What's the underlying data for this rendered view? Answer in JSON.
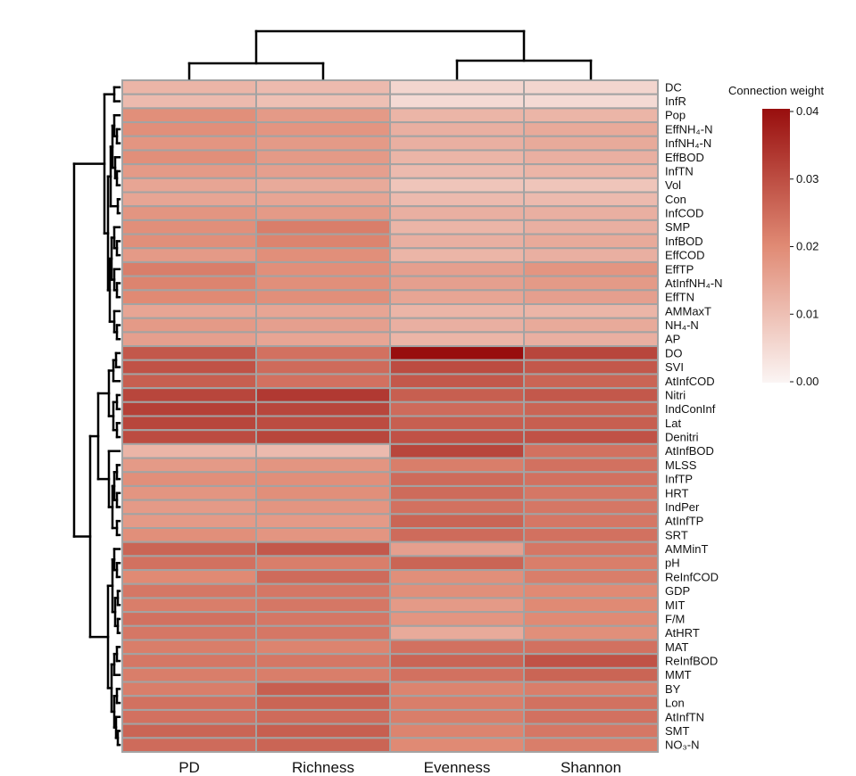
{
  "chart_data": {
    "type": "heatmap",
    "title": "",
    "legend_title": "Connection weight",
    "legend_ticks": [
      "0.04",
      "0.03",
      "0.02",
      "0.01",
      "0.00"
    ],
    "legend_range": [
      0,
      0.04
    ],
    "colors": {
      "low": "#fbf5f4",
      "mid": "#e08a74",
      "high": "#980e0e",
      "grid": "#a3a3a3",
      "line": "#000000"
    },
    "columns": [
      "PD",
      "Richness",
      "Evenness",
      "Shannon"
    ],
    "rows": [
      "DC",
      "InfR",
      "Pop",
      "EffNH₄-N",
      "InfNH₄-N",
      "EffBOD",
      "InfTN",
      "Vol",
      "Con",
      "InfCOD",
      "SMP",
      "InfBOD",
      "EffCOD",
      "EffTP",
      "AtInfNH₄-N",
      "EffTN",
      "AMMaxT",
      "NH₄-N",
      "AP",
      "DO",
      "SVI",
      "AtInfCOD",
      "Nitri",
      "IndConInf",
      "Lat",
      "Denitri",
      "AtInfBOD",
      "MLSS",
      "InfTP",
      "HRT",
      "IndPer",
      "AtInfTP",
      "SRT",
      "AMMinT",
      "pH",
      "ReInfCOD",
      "GDP",
      "MIT",
      "F/M",
      "AtHRT",
      "MAT",
      "ReInfBOD",
      "MMT",
      "BY",
      "Lon",
      "AtInfTN",
      "SMT",
      "NO₃-N"
    ],
    "values": [
      [
        0.012,
        0.011,
        0.006,
        0.006
      ],
      [
        0.011,
        0.01,
        0.005,
        0.005
      ],
      [
        0.019,
        0.017,
        0.012,
        0.012
      ],
      [
        0.019,
        0.018,
        0.013,
        0.014
      ],
      [
        0.018,
        0.017,
        0.013,
        0.014
      ],
      [
        0.019,
        0.017,
        0.012,
        0.013
      ],
      [
        0.017,
        0.016,
        0.011,
        0.012
      ],
      [
        0.015,
        0.014,
        0.009,
        0.009
      ],
      [
        0.015,
        0.015,
        0.011,
        0.011
      ],
      [
        0.018,
        0.017,
        0.013,
        0.013
      ],
      [
        0.019,
        0.022,
        0.012,
        0.013
      ],
      [
        0.019,
        0.021,
        0.013,
        0.014
      ],
      [
        0.017,
        0.019,
        0.012,
        0.013
      ],
      [
        0.022,
        0.019,
        0.016,
        0.018
      ],
      [
        0.021,
        0.019,
        0.016,
        0.017
      ],
      [
        0.02,
        0.019,
        0.015,
        0.016
      ],
      [
        0.015,
        0.015,
        0.012,
        0.012
      ],
      [
        0.017,
        0.016,
        0.013,
        0.014
      ],
      [
        0.016,
        0.015,
        0.012,
        0.013
      ],
      [
        0.028,
        0.024,
        0.04,
        0.031
      ],
      [
        0.029,
        0.025,
        0.03,
        0.028
      ],
      [
        0.027,
        0.024,
        0.028,
        0.026
      ],
      [
        0.031,
        0.033,
        0.027,
        0.028
      ],
      [
        0.032,
        0.031,
        0.025,
        0.026
      ],
      [
        0.031,
        0.03,
        0.027,
        0.027
      ],
      [
        0.03,
        0.031,
        0.029,
        0.029
      ],
      [
        0.012,
        0.011,
        0.031,
        0.024
      ],
      [
        0.017,
        0.018,
        0.022,
        0.024
      ],
      [
        0.019,
        0.019,
        0.025,
        0.024
      ],
      [
        0.018,
        0.019,
        0.025,
        0.023
      ],
      [
        0.017,
        0.018,
        0.024,
        0.023
      ],
      [
        0.017,
        0.017,
        0.026,
        0.023
      ],
      [
        0.019,
        0.018,
        0.025,
        0.024
      ],
      [
        0.026,
        0.028,
        0.016,
        0.023
      ],
      [
        0.024,
        0.022,
        0.026,
        0.022
      ],
      [
        0.02,
        0.025,
        0.019,
        0.022
      ],
      [
        0.023,
        0.023,
        0.019,
        0.02
      ],
      [
        0.022,
        0.023,
        0.017,
        0.02
      ],
      [
        0.024,
        0.023,
        0.018,
        0.02
      ],
      [
        0.023,
        0.023,
        0.014,
        0.019
      ],
      [
        0.022,
        0.021,
        0.024,
        0.024
      ],
      [
        0.023,
        0.023,
        0.026,
        0.029
      ],
      [
        0.022,
        0.022,
        0.024,
        0.026
      ],
      [
        0.022,
        0.027,
        0.021,
        0.022
      ],
      [
        0.024,
        0.026,
        0.022,
        0.024
      ],
      [
        0.024,
        0.025,
        0.022,
        0.024
      ],
      [
        0.026,
        0.027,
        0.021,
        0.023
      ],
      [
        0.025,
        0.026,
        0.02,
        0.022
      ]
    ]
  }
}
